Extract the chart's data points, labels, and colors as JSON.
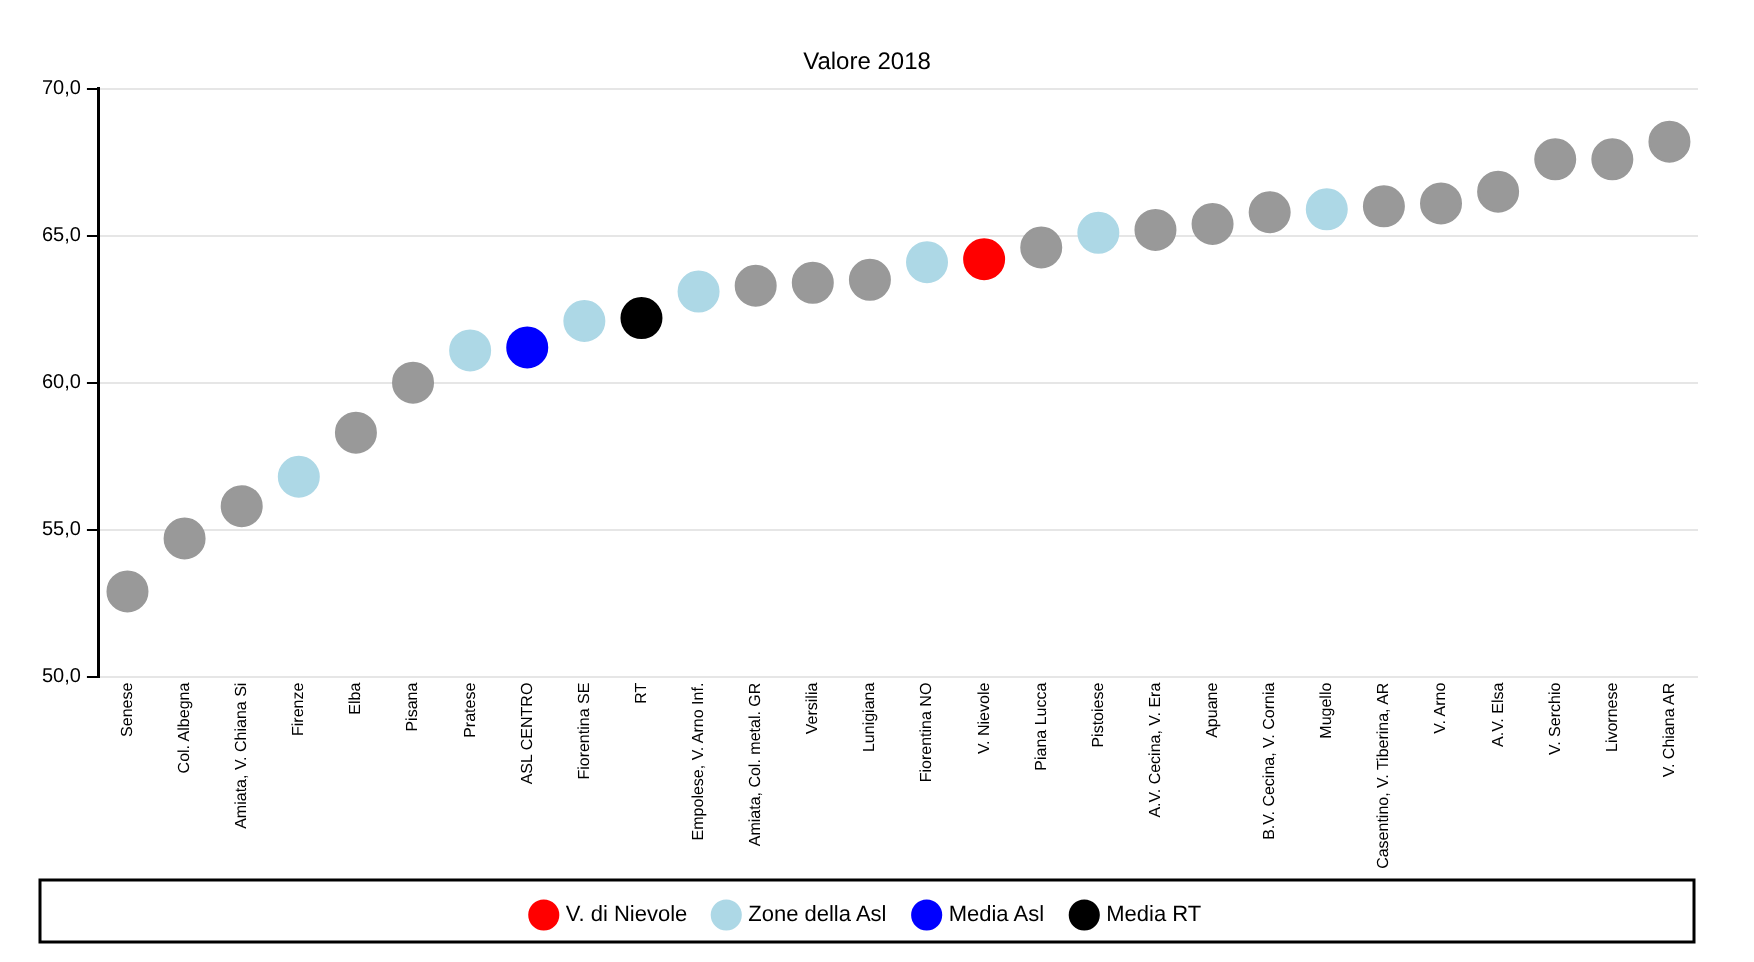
{
  "chart_data": {
    "type": "scatter",
    "title": "Valore 2018",
    "categories": [
      "Senese",
      "Col. Albegna",
      "Amiata, V. Chiana Si",
      "Firenze",
      "Elba",
      "Pisana",
      "Pratese",
      "ASL CENTRO",
      "Fiorentina SE",
      "RT",
      "Empolese, V. Arno Inf.",
      "Amiata, Col. metal. GR",
      "Versilia",
      "Lunigiana",
      "Fiorentina NO",
      "V. Nievole",
      "Piana Lucca",
      "Pistoiese",
      "A.V. Cecina, V. Era",
      "Apuane",
      "B.V. Cecina, V. Cornia",
      "Mugello",
      "Casentino, V. Tiberina, AR",
      "V. Arno",
      "A.V. Elsa",
      "V. Serchio",
      "Livornese",
      "V. Chiana AR"
    ],
    "series": [
      {
        "color": "#999999",
        "values": [
          52.9,
          54.7,
          55.8,
          null,
          58.3,
          60.0,
          null,
          null,
          null,
          null,
          null,
          63.3,
          63.4,
          63.5,
          null,
          null,
          64.6,
          null,
          65.2,
          65.4,
          65.8,
          null,
          66.0,
          66.1,
          66.5,
          67.6,
          67.6,
          68.2
        ]
      },
      {
        "name": "V. di Nievole",
        "color": "#ff0000",
        "values": [
          null,
          null,
          null,
          null,
          null,
          null,
          null,
          null,
          null,
          null,
          null,
          null,
          null,
          null,
          null,
          64.2,
          null,
          null,
          null,
          null,
          null,
          null,
          null,
          null,
          null,
          null,
          null,
          null
        ]
      },
      {
        "name": "Zone della Asl",
        "color": "#add8e6",
        "values": [
          null,
          null,
          null,
          56.8,
          null,
          null,
          61.1,
          null,
          62.1,
          null,
          63.1,
          null,
          null,
          null,
          64.1,
          null,
          null,
          65.1,
          null,
          null,
          null,
          65.9,
          null,
          null,
          null,
          null,
          null,
          null
        ]
      },
      {
        "name": "Media Asl",
        "color": "#0000ff",
        "values": [
          null,
          null,
          null,
          null,
          null,
          null,
          null,
          61.2,
          null,
          null,
          null,
          null,
          null,
          null,
          null,
          null,
          null,
          null,
          null,
          null,
          null,
          null,
          null,
          null,
          null,
          null,
          null,
          null
        ]
      },
      {
        "name": "Media RT",
        "color": "#000000",
        "values": [
          null,
          null,
          null,
          null,
          null,
          null,
          null,
          null,
          null,
          62.2,
          null,
          null,
          null,
          null,
          null,
          null,
          null,
          null,
          null,
          null,
          null,
          null,
          null,
          null,
          null,
          null,
          null,
          null
        ]
      }
    ],
    "ylim": [
      50,
      70
    ],
    "yticks": [
      {
        "value": 50,
        "label": "50,0"
      },
      {
        "value": 55,
        "label": "55,0"
      },
      {
        "value": 60,
        "label": "60,0"
      },
      {
        "value": 65,
        "label": "65,0"
      },
      {
        "value": 70,
        "label": "70,0"
      }
    ],
    "grid": "y",
    "legend": "bottom",
    "marker": "circle"
  }
}
